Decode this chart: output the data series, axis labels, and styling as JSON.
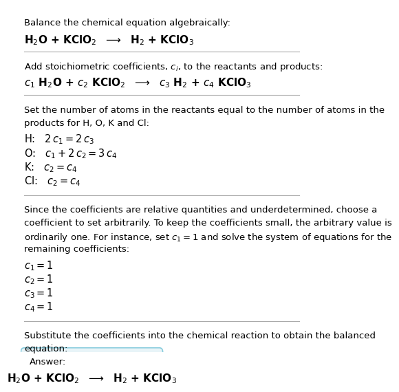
{
  "bg_color": "#ffffff",
  "text_color": "#000000",
  "divider_color": "#aaaaaa",
  "answer_box_color": "#e8f4f8",
  "answer_box_border": "#88ccdd",
  "fig_width": 5.28,
  "fig_height": 6.52,
  "section1_line1": "Balance the chemical equation algebraically:",
  "section1_line2": "H$_2$O + KClO$_2$  $\\longrightarrow$  H$_2$ + KClO$_3$",
  "section2_line1": "Add stoichiometric coefficients, $c_i$, to the reactants and products:",
  "section2_line2": "$c_1$ H$_2$O + $c_2$ KClO$_2$  $\\longrightarrow$  $c_3$ H$_2$ + $c_4$ KClO$_3$",
  "section3_line1": "Set the number of atoms in the reactants equal to the number of atoms in the",
  "section3_line2": "products for H, O, K and Cl:",
  "section3_eqs": [
    "H:   $2\\,c_1 = 2\\,c_3$",
    "O:   $c_1 + 2\\,c_2 = 3\\,c_4$",
    "K:   $c_2 = c_4$",
    "Cl:   $c_2 = c_4$"
  ],
  "section4_para": [
    "Since the coefficients are relative quantities and underdetermined, choose a",
    "coefficient to set arbitrarily. To keep the coefficients small, the arbitrary value is",
    "ordinarily one. For instance, set $c_1 = 1$ and solve the system of equations for the",
    "remaining coefficients:"
  ],
  "section4_coeffs": [
    "$c_1 = 1$",
    "$c_2 = 1$",
    "$c_3 = 1$",
    "$c_4 = 1$"
  ],
  "section5_line1": "Substitute the coefficients into the chemical reaction to obtain the balanced",
  "section5_line2": "equation:",
  "answer_label": "Answer:",
  "answer_eq": "H$_2$O + KClO$_2$  $\\longrightarrow$  H$_2$ + KClO$_3$"
}
